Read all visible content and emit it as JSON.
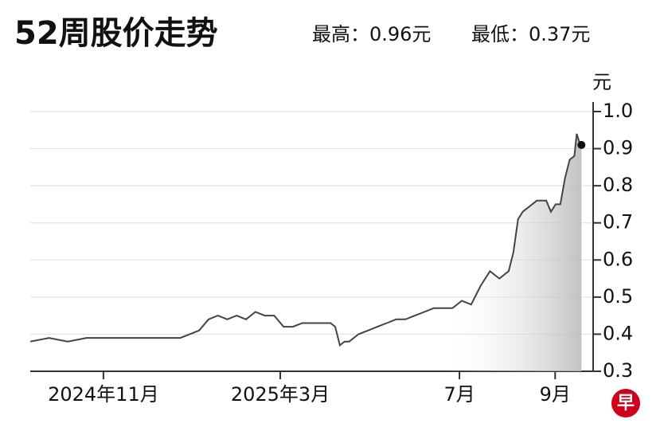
{
  "chart_data": {
    "type": "line",
    "title": "52周股价走势",
    "annotations": [
      "最高：0.96元",
      "最低：0.37元"
    ],
    "y_label": "元",
    "logo": "早",
    "x": [
      0,
      4,
      8,
      12,
      16,
      20,
      24,
      28,
      32,
      36,
      38,
      40,
      42,
      44,
      46,
      48,
      50,
      52,
      54,
      56,
      58,
      60,
      62,
      64,
      65,
      66,
      67,
      68,
      70,
      72,
      74,
      76,
      78,
      80,
      82,
      84,
      86,
      88,
      90,
      92,
      94,
      96,
      98,
      100,
      102,
      103,
      104,
      105,
      106,
      108,
      110,
      111,
      112,
      113,
      114,
      115,
      116,
      116.5,
      117,
      117.5
    ],
    "series": [
      {
        "name": "股价",
        "color": "#444444",
        "values": [
          0.38,
          0.39,
          0.38,
          0.39,
          0.39,
          0.39,
          0.39,
          0.39,
          0.39,
          0.41,
          0.44,
          0.45,
          0.44,
          0.45,
          0.44,
          0.46,
          0.45,
          0.45,
          0.42,
          0.42,
          0.43,
          0.43,
          0.43,
          0.43,
          0.42,
          0.37,
          0.38,
          0.38,
          0.4,
          0.41,
          0.42,
          0.43,
          0.44,
          0.44,
          0.45,
          0.46,
          0.47,
          0.47,
          0.47,
          0.49,
          0.48,
          0.53,
          0.57,
          0.55,
          0.57,
          0.62,
          0.71,
          0.73,
          0.74,
          0.76,
          0.76,
          0.73,
          0.75,
          0.75,
          0.82,
          0.87,
          0.88,
          0.94,
          0.92,
          0.91
        ]
      }
    ],
    "xlim": [
      0,
      120
    ],
    "xticks": [
      {
        "value": 15.6,
        "label": "2024年11月"
      },
      {
        "value": 53.3,
        "label": "2025年3月"
      },
      {
        "value": 91.5,
        "label": "7月"
      },
      {
        "value": 111.9,
        "label": "9月"
      }
    ],
    "ylim": [
      0.3,
      1.0
    ],
    "yticks": [
      0.3,
      0.4,
      0.5,
      0.6,
      0.7,
      0.8,
      0.9,
      {
        "value": 1.0,
        "label": "1.0"
      }
    ],
    "grid": true
  }
}
